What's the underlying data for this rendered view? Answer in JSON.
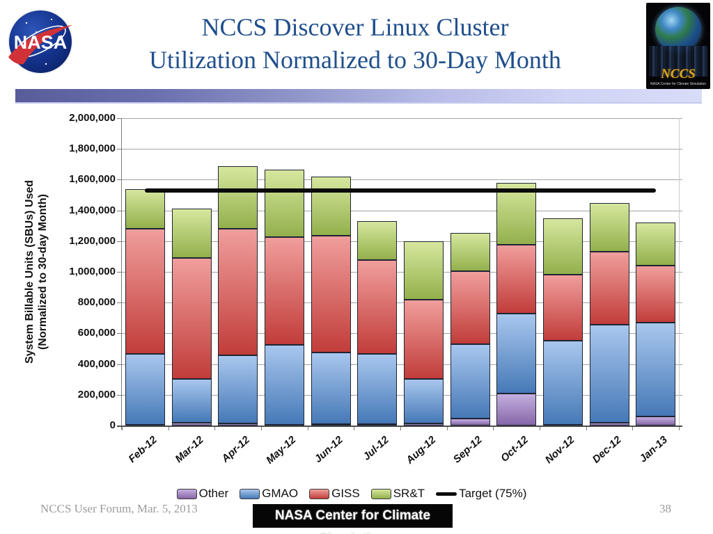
{
  "slide": {
    "title_line1": "NCCS Discover Linux Cluster",
    "title_line2": "Utilization Normalized to 30-Day Month",
    "footer_left": "NCCS User Forum, Mar. 5, 2013",
    "footer_banner": "NASA Center for Climate Simulation",
    "page_number": "38"
  },
  "logos": {
    "nasa_text": "NASA",
    "nccs_text": "NCCS",
    "nccs_caption": "NASA Center for Climate Simulation"
  },
  "chart_data": {
    "type": "bar",
    "stacked": true,
    "title": "",
    "ylabel_line1": "System Billable Units (SBUs) Used",
    "ylabel_line2": "(Normalized to 30-day Month)",
    "ylim": [
      0,
      2000000
    ],
    "ytick_step": 200000,
    "ytick_labels": [
      "0",
      "200,000",
      "400,000",
      "600,000",
      "800,000",
      "1,000,000",
      "1,200,000",
      "1,400,000",
      "1,600,000",
      "1,800,000",
      "2,000,000"
    ],
    "grid": true,
    "legend_position": "bottom",
    "categories": [
      "Feb-12",
      "Mar-12",
      "Apr-12",
      "May-12",
      "Jun-12",
      "Jul-12",
      "Aug-12",
      "Sep-12",
      "Oct-12",
      "Nov-12",
      "Dec-12",
      "Jan-13"
    ],
    "series": [
      {
        "name": "Other",
        "color_light": "#C4AFDF",
        "color_dark": "#8766A8",
        "values": [
          5000,
          20000,
          15000,
          5000,
          10000,
          10000,
          15000,
          45000,
          210000,
          5000,
          20000,
          60000
        ]
      },
      {
        "name": "GMAO",
        "color_light": "#A9C7EE",
        "color_dark": "#4679B7",
        "values": [
          460000,
          285000,
          440000,
          520000,
          465000,
          455000,
          290000,
          485000,
          520000,
          545000,
          635000,
          610000
        ]
      },
      {
        "name": "GISS",
        "color_light": "#F09E9C",
        "color_dark": "#C13D3A",
        "values": [
          815000,
          785000,
          825000,
          700000,
          760000,
          610000,
          515000,
          475000,
          445000,
          430000,
          475000,
          370000
        ]
      },
      {
        "name": "SR&T",
        "color_light": "#D6E79E",
        "color_dark": "#93B04C",
        "values": [
          260000,
          320000,
          410000,
          440000,
          385000,
          255000,
          380000,
          250000,
          405000,
          370000,
          320000,
          280000
        ]
      }
    ],
    "target": {
      "label": "Target (75%)",
      "value": 1530000,
      "color": "#0a0a0a",
      "spans": "Feb-12 to Jan-13"
    }
  }
}
